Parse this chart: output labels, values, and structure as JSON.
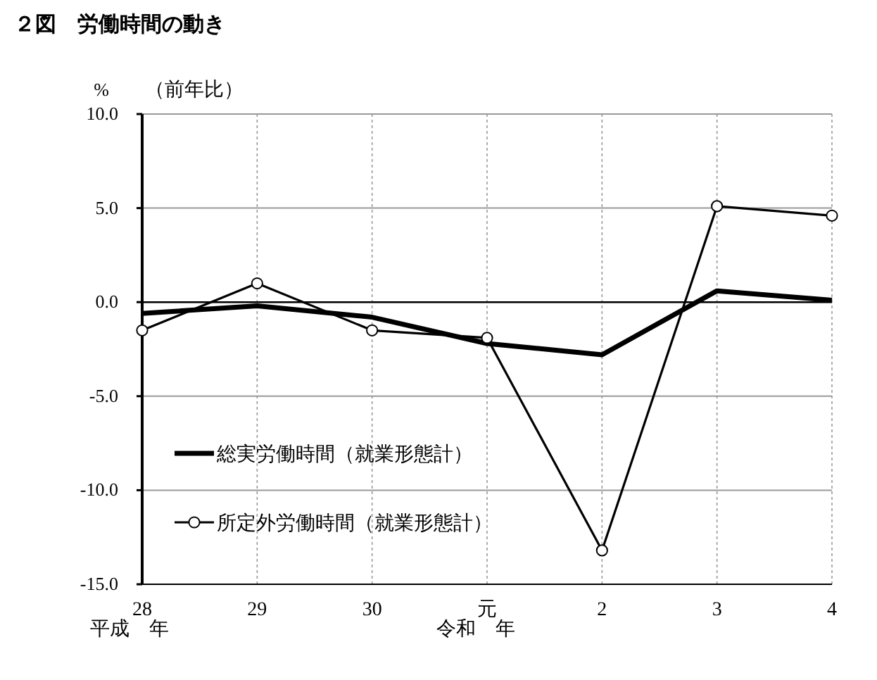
{
  "chart_data": {
    "type": "line",
    "title": "２図　労働時間の動き",
    "ylabel": "%",
    "annotations": [
      "（前年比）",
      "平成　年",
      "令和　年"
    ],
    "categories": [
      "28",
      "29",
      "30",
      "元",
      "2",
      "3",
      "4"
    ],
    "series": [
      {
        "name": "総実労働時間（就業形態計）",
        "color": "#000000",
        "marker": "none",
        "values": [
          -0.6,
          -0.2,
          -0.8,
          -2.2,
          -2.8,
          0.6,
          0.1
        ]
      },
      {
        "name": "所定外労働時間（就業形態計）",
        "color": "#000000",
        "marker": "circle",
        "values": [
          -1.5,
          1.0,
          -1.5,
          -1.9,
          -13.2,
          5.1,
          4.6
        ]
      }
    ],
    "ylim": [
      -15,
      10
    ],
    "yticks": [
      {
        "value": -15,
        "label": "-15.0"
      },
      {
        "value": -10,
        "label": "-10.0"
      },
      {
        "value": -5,
        "label": "-5.0"
      },
      {
        "value": 0,
        "label": "0.0"
      },
      {
        "value": 5,
        "label": "5.0"
      },
      {
        "value": 10,
        "label": "10.0"
      }
    ],
    "ref_lines": [
      {
        "axis": "y",
        "value": 0,
        "color": "#000000"
      }
    ],
    "grid": true,
    "legend": "bottom left"
  }
}
